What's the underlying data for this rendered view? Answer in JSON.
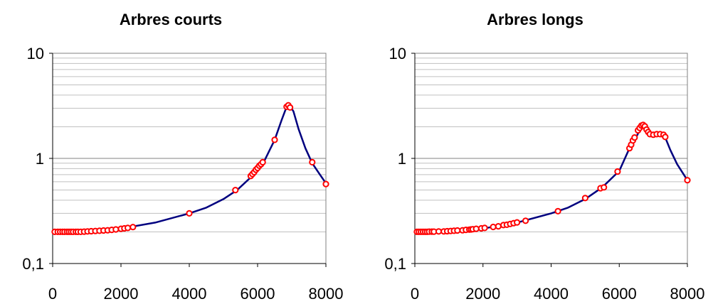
{
  "chart_data": [
    {
      "type": "line",
      "title": "Arbres courts",
      "xlabel": "",
      "ylabel": "",
      "xlim": [
        0,
        8000
      ],
      "ylim": [
        0.1,
        10
      ],
      "y_scale": "log",
      "x_ticks": [
        0,
        2000,
        4000,
        6000,
        8000
      ],
      "x_tick_labels": [
        "0",
        "2000",
        "4000",
        "6000",
        "8000"
      ],
      "y_ticks": [
        0.1,
        1,
        10
      ],
      "y_tick_labels": [
        "0,1",
        "1",
        "10"
      ],
      "grid": "horizontal",
      "line_color": "#00007f",
      "marker_color": "#ff0000",
      "series": [
        {
          "curve": [
            [
              0,
              0.2
            ],
            [
              1000,
              0.202
            ],
            [
              2000,
              0.215
            ],
            [
              3000,
              0.245
            ],
            [
              4000,
              0.3
            ],
            [
              4500,
              0.34
            ],
            [
              5000,
              0.41
            ],
            [
              5400,
              0.5
            ],
            [
              5800,
              0.66
            ],
            [
              6200,
              0.95
            ],
            [
              6500,
              1.5
            ],
            [
              6700,
              2.3
            ],
            [
              6850,
              3.1
            ],
            [
              6950,
              3.15
            ],
            [
              7050,
              2.8
            ],
            [
              7200,
              1.9
            ],
            [
              7400,
              1.25
            ],
            [
              7600,
              0.9
            ],
            [
              7800,
              0.72
            ],
            [
              8000,
              0.58
            ]
          ],
          "points": [
            [
              60,
              0.2
            ],
            [
              150,
              0.2
            ],
            [
              220,
              0.2
            ],
            [
              290,
              0.2
            ],
            [
              350,
              0.2
            ],
            [
              420,
              0.2
            ],
            [
              480,
              0.2
            ],
            [
              540,
              0.2
            ],
            [
              600,
              0.2
            ],
            [
              680,
              0.2
            ],
            [
              740,
              0.2
            ],
            [
              820,
              0.2
            ],
            [
              920,
              0.201
            ],
            [
              1020,
              0.202
            ],
            [
              1130,
              0.203
            ],
            [
              1250,
              0.204
            ],
            [
              1370,
              0.205
            ],
            [
              1490,
              0.206
            ],
            [
              1610,
              0.207
            ],
            [
              1730,
              0.209
            ],
            [
              1850,
              0.211
            ],
            [
              2000,
              0.214
            ],
            [
              2100,
              0.216
            ],
            [
              2200,
              0.218
            ],
            [
              2350,
              0.222
            ],
            [
              4000,
              0.3
            ],
            [
              5350,
              0.5
            ],
            [
              5800,
              0.68
            ],
            [
              5850,
              0.71
            ],
            [
              5900,
              0.74
            ],
            [
              5950,
              0.78
            ],
            [
              6000,
              0.81
            ],
            [
              6050,
              0.85
            ],
            [
              6100,
              0.88
            ],
            [
              6150,
              0.92
            ],
            [
              6500,
              1.5
            ],
            [
              6850,
              3.1
            ],
            [
              6900,
              3.2
            ],
            [
              6950,
              3.05
            ],
            [
              7600,
              0.92
            ],
            [
              8000,
              0.57
            ]
          ]
        }
      ]
    },
    {
      "type": "line",
      "title": "Arbres longs",
      "xlabel": "",
      "ylabel": "",
      "xlim": [
        0,
        8000
      ],
      "ylim": [
        0.1,
        10
      ],
      "y_scale": "log",
      "x_ticks": [
        0,
        2000,
        4000,
        6000,
        8000
      ],
      "x_tick_labels": [
        "0",
        "2000",
        "4000",
        "6000",
        "8000"
      ],
      "y_ticks": [
        0.1,
        1,
        10
      ],
      "y_tick_labels": [
        "0,1",
        "1",
        "10"
      ],
      "grid": "horizontal",
      "line_color": "#00007f",
      "marker_color": "#ff0000",
      "series": [
        {
          "curve": [
            [
              0,
              0.2
            ],
            [
              1000,
              0.203
            ],
            [
              2000,
              0.215
            ],
            [
              3000,
              0.245
            ],
            [
              4000,
              0.3
            ],
            [
              4500,
              0.34
            ],
            [
              5000,
              0.41
            ],
            [
              5500,
              0.53
            ],
            [
              6000,
              0.76
            ],
            [
              6300,
              1.25
            ],
            [
              6500,
              1.6
            ],
            [
              6650,
              2.0
            ],
            [
              6750,
              2.05
            ],
            [
              6850,
              1.85
            ],
            [
              6950,
              1.68
            ],
            [
              7100,
              1.7
            ],
            [
              7250,
              1.68
            ],
            [
              7350,
              1.58
            ],
            [
              7500,
              1.2
            ],
            [
              7700,
              0.88
            ],
            [
              8000,
              0.62
            ]
          ],
          "points": [
            [
              60,
              0.2
            ],
            [
              120,
              0.2
            ],
            [
              180,
              0.2
            ],
            [
              240,
              0.2
            ],
            [
              300,
              0.2
            ],
            [
              360,
              0.2
            ],
            [
              420,
              0.201
            ],
            [
              500,
              0.201
            ],
            [
              560,
              0.201
            ],
            [
              700,
              0.202
            ],
            [
              850,
              0.202
            ],
            [
              950,
              0.203
            ],
            [
              1050,
              0.204
            ],
            [
              1150,
              0.205
            ],
            [
              1250,
              0.206
            ],
            [
              1400,
              0.207
            ],
            [
              1500,
              0.209
            ],
            [
              1600,
              0.21
            ],
            [
              1650,
              0.211
            ],
            [
              1700,
              0.212
            ],
            [
              1800,
              0.214
            ],
            [
              1950,
              0.216
            ],
            [
              2050,
              0.218
            ],
            [
              2300,
              0.223
            ],
            [
              2450,
              0.226
            ],
            [
              2600,
              0.232
            ],
            [
              2700,
              0.234
            ],
            [
              2800,
              0.238
            ],
            [
              2900,
              0.242
            ],
            [
              3000,
              0.246
            ],
            [
              3250,
              0.255
            ],
            [
              4200,
              0.315
            ],
            [
              5000,
              0.42
            ],
            [
              5450,
              0.52
            ],
            [
              5550,
              0.53
            ],
            [
              5950,
              0.75
            ],
            [
              6300,
              1.25
            ],
            [
              6350,
              1.35
            ],
            [
              6400,
              1.48
            ],
            [
              6450,
              1.58
            ],
            [
              6550,
              1.85
            ],
            [
              6600,
              1.95
            ],
            [
              6650,
              2.05
            ],
            [
              6700,
              2.08
            ],
            [
              6750,
              2.02
            ],
            [
              6800,
              1.88
            ],
            [
              6850,
              1.78
            ],
            [
              6900,
              1.7
            ],
            [
              7000,
              1.68
            ],
            [
              7100,
              1.7
            ],
            [
              7200,
              1.7
            ],
            [
              7300,
              1.68
            ],
            [
              7350,
              1.6
            ],
            [
              8000,
              0.62
            ]
          ]
        }
      ]
    }
  ]
}
